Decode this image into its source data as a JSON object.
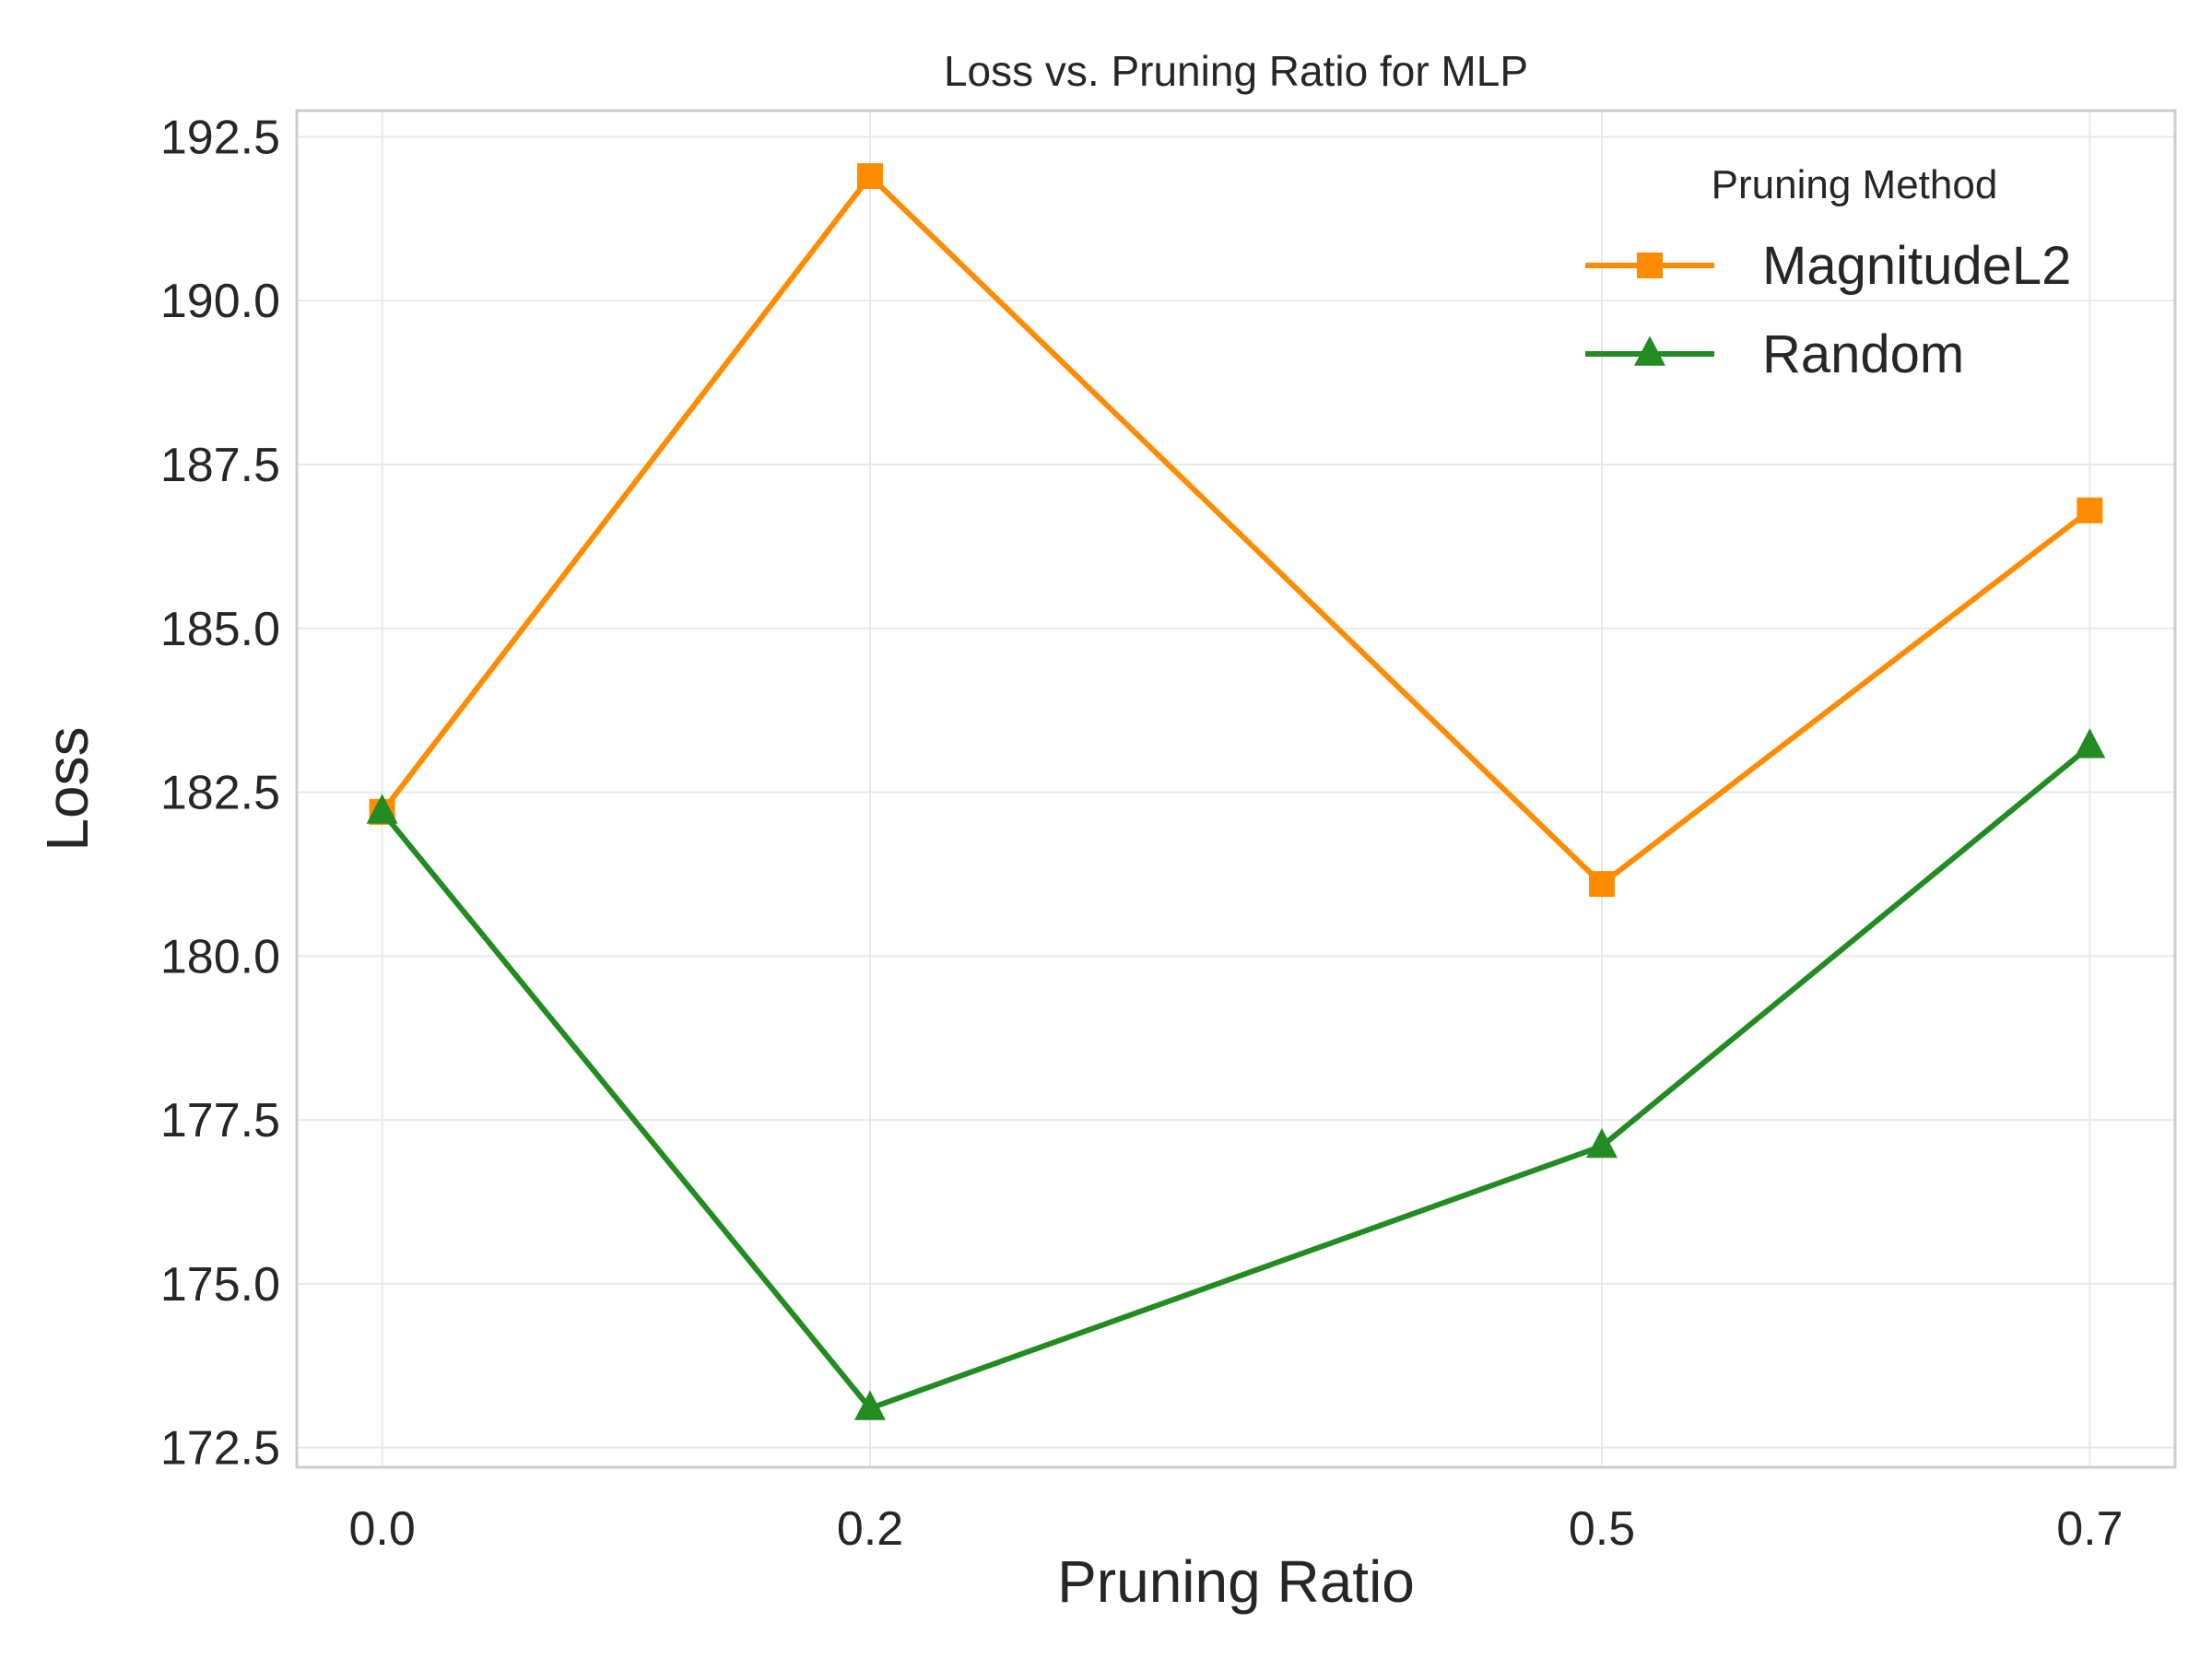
{
  "chart_data": {
    "type": "line",
    "title": "Loss vs. Pruning Ratio for MLP",
    "xlabel": "Pruning Ratio",
    "ylabel": "Loss",
    "x": [
      0.0,
      0.2,
      0.5,
      0.7
    ],
    "x_tick_labels": [
      "0.0",
      "0.2",
      "0.5",
      "0.7"
    ],
    "y_ticks": [
      172.5,
      175.0,
      177.5,
      180.0,
      182.5,
      185.0,
      187.5,
      190.0,
      192.5
    ],
    "y_tick_labels": [
      "172.5",
      "175.0",
      "177.5",
      "180.0",
      "182.5",
      "185.0",
      "187.5",
      "190.0",
      "192.5"
    ],
    "xlim": [
      -0.035,
      0.735
    ],
    "ylim": [
      172.2,
      192.9
    ],
    "grid": true,
    "legend": {
      "title": "Pruning Method",
      "placement": "top-right"
    },
    "series": [
      {
        "name": "MagnitudeL2",
        "color": "#ff8c00",
        "marker": "square",
        "values": [
          182.2,
          191.9,
          181.1,
          186.8
        ]
      },
      {
        "name": "Random",
        "color": "#228b22",
        "marker": "triangle",
        "values": [
          182.2,
          173.1,
          177.1,
          183.2
        ]
      }
    ]
  }
}
